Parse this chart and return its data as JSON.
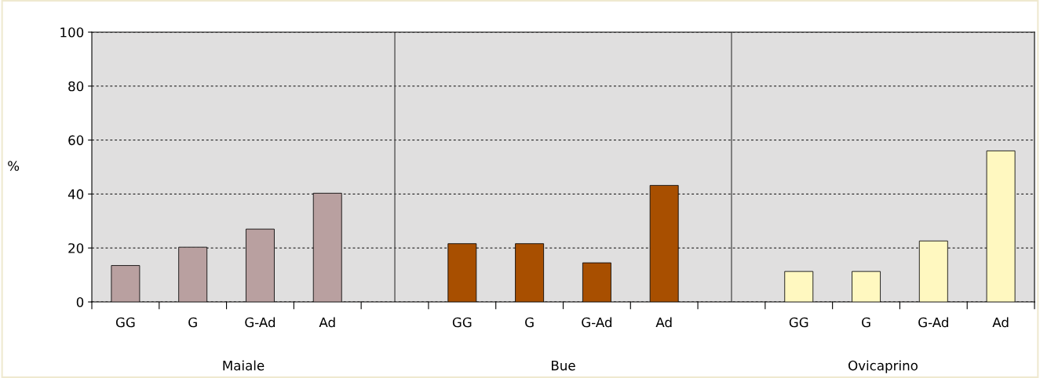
{
  "chart_data": {
    "type": "bar",
    "ylabel": "%",
    "categories": [
      "GG",
      "G",
      "G-Ad",
      "Ad",
      null,
      null,
      "GG",
      "G",
      "G-Ad",
      "Ad",
      null,
      null,
      "GG",
      "G",
      "G-Ad",
      "Ad"
    ],
    "values": [
      13.5,
      20.3,
      27,
      40.3,
      null,
      null,
      21.6,
      21.6,
      14.5,
      43.2,
      null,
      null,
      11.3,
      11.3,
      22.6,
      56
    ],
    "colors": [
      "#b9a0a0",
      "#b9a0a0",
      "#b9a0a0",
      "#b9a0a0",
      "#ffffff",
      "#ffffff",
      "#a84f00",
      "#a84f00",
      "#a84f00",
      "#a84f00",
      "#ffffff",
      "#ffffff",
      "#fff8c0",
      "#fff8c0",
      "#fff8c0",
      "#fff8c0"
    ],
    "annotations": [
      "Maiale",
      "Bue",
      "Ovicaprino"
    ],
    "ylim": [
      0,
      100
    ],
    "yticks": [
      0,
      20,
      40,
      60,
      80,
      100
    ],
    "grid": "y",
    "legend": false
  }
}
